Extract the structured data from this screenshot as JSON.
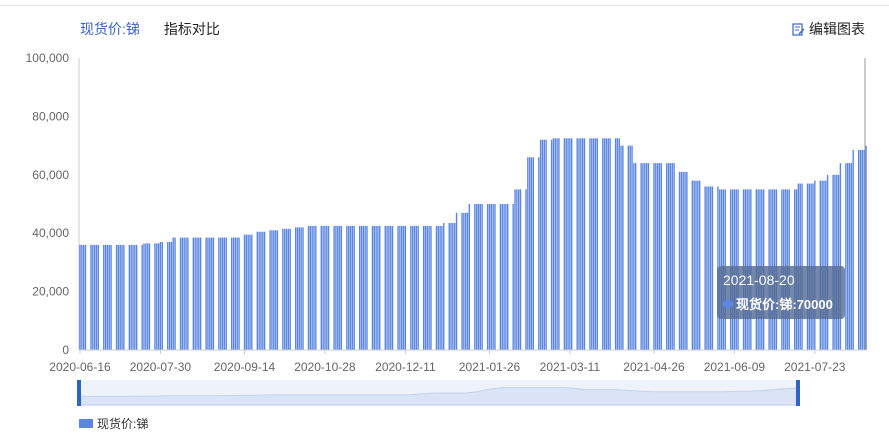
{
  "tabs": [
    {
      "label": "现货价:锑"
    },
    {
      "label": "指标对比"
    }
  ],
  "edit_button": {
    "label": "编辑图表",
    "icon": "edit-chart-icon"
  },
  "tooltip": {
    "date": "2021-08-20",
    "text": "现货价:锑:70000"
  },
  "legend": {
    "label": "现货价:锑"
  },
  "colors": {
    "bar": "#5b86e0",
    "accent": "#3a64c4",
    "slider_handle": "#2f63c7"
  },
  "chart_data": {
    "type": "bar",
    "ylim": [
      0,
      100000
    ],
    "yticks": [
      "0",
      "20,000",
      "40,000",
      "60,000",
      "80,000",
      "100,000"
    ],
    "xticks": [
      "2020-06-16",
      "2020-07-30",
      "2020-09-14",
      "2020-10-28",
      "2020-12-11",
      "2021-01-26",
      "2021-03-11",
      "2021-04-26",
      "2021-06-09",
      "2021-07-23"
    ],
    "series": [
      {
        "name": "现货价:锑",
        "x": [
          "2020-06-16",
          "2020-06-23",
          "2020-06-30",
          "2020-07-07",
          "2020-07-14",
          "2020-07-21",
          "2020-07-30",
          "2020-08-06",
          "2020-08-13",
          "2020-08-20",
          "2020-08-27",
          "2020-09-03",
          "2020-09-14",
          "2020-09-21",
          "2020-09-28",
          "2020-10-05",
          "2020-10-12",
          "2020-10-19",
          "2020-10-28",
          "2020-11-04",
          "2020-11-11",
          "2020-11-18",
          "2020-11-25",
          "2020-12-02",
          "2020-12-11",
          "2020-12-18",
          "2020-12-25",
          "2021-01-01",
          "2021-01-08",
          "2021-01-15",
          "2021-01-26",
          "2021-02-02",
          "2021-02-09",
          "2021-02-16",
          "2021-02-23",
          "2021-03-02",
          "2021-03-11",
          "2021-03-18",
          "2021-03-25",
          "2021-04-01",
          "2021-04-08",
          "2021-04-15",
          "2021-04-26",
          "2021-05-03",
          "2021-05-10",
          "2021-05-17",
          "2021-05-24",
          "2021-06-01",
          "2021-06-09",
          "2021-06-16",
          "2021-06-23",
          "2021-06-30",
          "2021-07-07",
          "2021-07-14",
          "2021-07-23",
          "2021-07-30",
          "2021-08-06",
          "2021-08-13",
          "2021-08-20"
        ],
        "values": [
          36000,
          36000,
          36000,
          36000,
          36000,
          36500,
          37000,
          38500,
          38500,
          38500,
          38500,
          38500,
          39500,
          40500,
          41000,
          41500,
          42000,
          42500,
          42500,
          42500,
          42500,
          42500,
          42500,
          42500,
          42500,
          42500,
          42500,
          43500,
          47000,
          50000,
          50000,
          50000,
          55000,
          66000,
          72000,
          72500,
          72500,
          72500,
          72500,
          72500,
          70000,
          64000,
          64000,
          64000,
          61000,
          58000,
          56000,
          55000,
          55000,
          55000,
          55000,
          55000,
          55000,
          57000,
          58000,
          60000,
          64000,
          68500,
          70000
        ]
      }
    ]
  }
}
